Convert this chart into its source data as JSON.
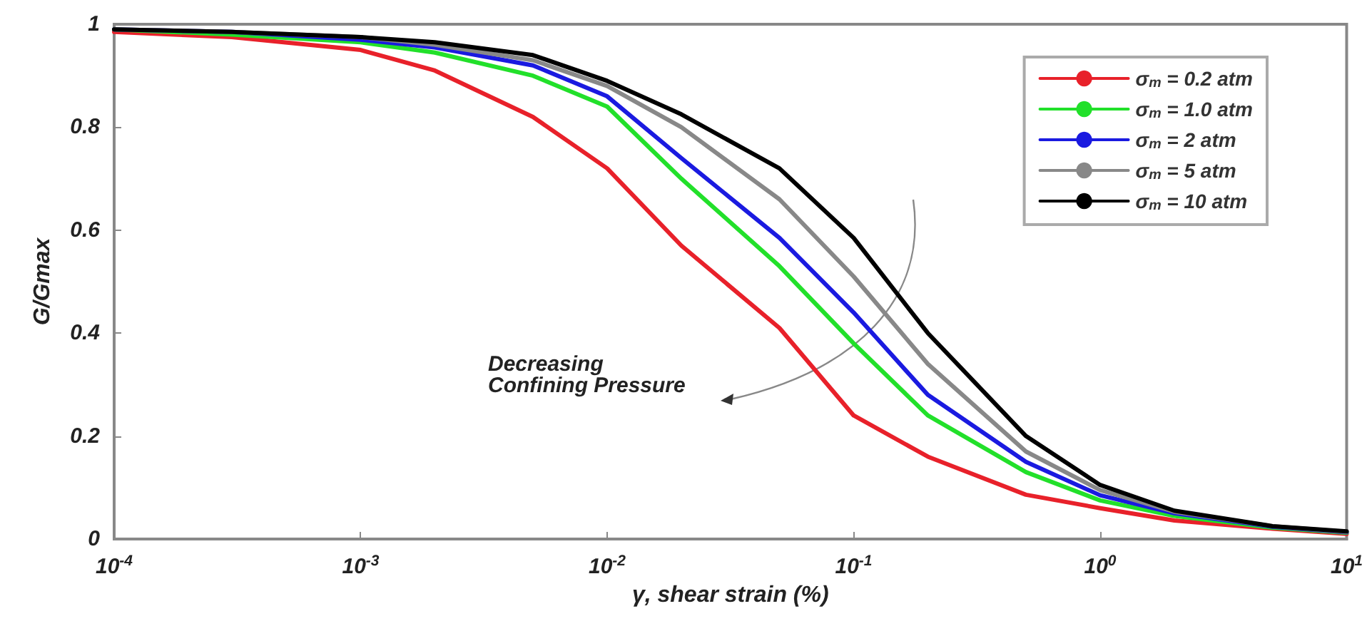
{
  "chart_data": {
    "type": "line",
    "xlabel": "γ, shear strain (%)",
    "ylabel": "G/Gmax",
    "log": "x",
    "x": [
      0.0001,
      0.0003,
      0.001,
      0.002,
      0.005,
      0.01,
      0.02,
      0.05,
      0.1,
      0.2,
      0.5,
      1,
      2,
      5,
      10
    ],
    "series": [
      {
        "name": "σ$_{m}$ = 0.2 atm",
        "color": "#e8212a",
        "values": [
          0.985,
          0.975,
          0.95,
          0.91,
          0.82,
          0.72,
          0.57,
          0.41,
          0.24,
          0.16,
          0.086,
          0.06,
          0.036,
          0.02,
          0.01
        ]
      },
      {
        "name": "σ$_{m}$ = 1.0 atm",
        "color": "#22e02a",
        "values": [
          0.99,
          0.98,
          0.965,
          0.945,
          0.9,
          0.84,
          0.7,
          0.53,
          0.38,
          0.24,
          0.13,
          0.075,
          0.045,
          0.022,
          0.012
        ]
      },
      {
        "name": "σ$_{m}$ = 2 atm",
        "color": "#1a1ae0",
        "values": [
          0.99,
          0.985,
          0.97,
          0.955,
          0.92,
          0.86,
          0.74,
          0.585,
          0.44,
          0.28,
          0.15,
          0.085,
          0.05,
          0.024,
          0.013
        ]
      },
      {
        "name": "σ$_{m}$ = 5 atm",
        "color": "#888888",
        "values": [
          0.99,
          0.985,
          0.975,
          0.96,
          0.93,
          0.88,
          0.8,
          0.66,
          0.51,
          0.34,
          0.17,
          0.095,
          0.053,
          0.025,
          0.014
        ]
      },
      {
        "name": "σ$_{m}$ = 10 atm",
        "color": "#000000",
        "values": [
          0.99,
          0.985,
          0.975,
          0.965,
          0.94,
          0.89,
          0.825,
          0.72,
          0.585,
          0.4,
          0.2,
          0.105,
          0.055,
          0.025,
          0.015
        ]
      }
    ],
    "xlim": [
      0.0001,
      10
    ],
    "xticks": [
      {
        "value": 0.0001,
        "label": "10$^{-4}$"
      },
      {
        "value": 0.001,
        "label": "10$^{-3}$"
      },
      {
        "value": 0.01,
        "label": "10$^{-2}$"
      },
      {
        "value": 0.1,
        "label": "10$^{-1}$"
      },
      {
        "value": 1,
        "label": "10$^{0}$"
      },
      {
        "value": 10,
        "label": "10$^{1}$"
      }
    ],
    "ylim": [
      0,
      1
    ],
    "yticks": [
      0,
      0.2,
      0.4,
      0.6,
      0.8,
      1
    ],
    "annotations": [
      "Decreasing\nConfining Pressure"
    ],
    "grid": false,
    "legend": "top right",
    "marker": "none",
    "line_style": "solid"
  }
}
